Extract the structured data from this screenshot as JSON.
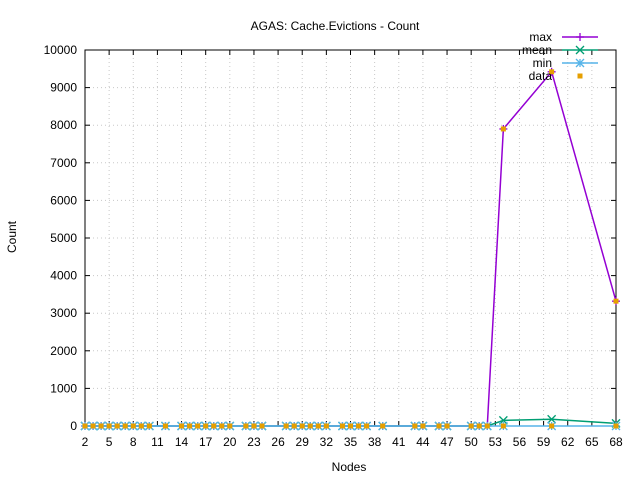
{
  "chart_data": {
    "type": "line",
    "title": "AGAS: Cache.Evictions - Count",
    "xlabel": "Nodes",
    "ylabel": "Count",
    "xlim": [
      2,
      68
    ],
    "ylim": [
      0,
      10000
    ],
    "x_ticks": [
      2,
      5,
      8,
      11,
      14,
      17,
      20,
      23,
      26,
      29,
      32,
      35,
      38,
      41,
      44,
      47,
      50,
      53,
      56,
      59,
      62,
      65,
      68
    ],
    "y_ticks": [
      0,
      1000,
      2000,
      3000,
      4000,
      5000,
      6000,
      7000,
      8000,
      9000,
      10000
    ],
    "grid": true,
    "legend_position": "top-right",
    "series": [
      {
        "name": "max",
        "style": "line+points",
        "color": "#9400d3",
        "marker": "plus",
        "x": [
          2,
          3,
          4,
          5,
          6,
          7,
          8,
          9,
          10,
          12,
          14,
          15,
          16,
          17,
          18,
          19,
          20,
          22,
          23,
          24,
          27,
          28,
          29,
          30,
          31,
          32,
          34,
          35,
          36,
          37,
          39,
          43,
          44,
          46,
          47,
          50,
          51,
          52,
          54,
          60,
          68
        ],
        "values": [
          0,
          0,
          0,
          0,
          0,
          0,
          0,
          0,
          0,
          0,
          0,
          0,
          0,
          0,
          0,
          0,
          0,
          0,
          0,
          0,
          0,
          0,
          0,
          0,
          0,
          0,
          0,
          0,
          0,
          0,
          0,
          0,
          0,
          0,
          0,
          0,
          0,
          0,
          7900,
          9420,
          3320
        ]
      },
      {
        "name": "mean",
        "style": "line+points",
        "color": "#009e73",
        "marker": "cross",
        "x": [
          2,
          3,
          4,
          5,
          6,
          7,
          8,
          9,
          10,
          12,
          14,
          15,
          16,
          17,
          18,
          19,
          20,
          22,
          23,
          24,
          27,
          28,
          29,
          30,
          31,
          32,
          34,
          35,
          36,
          37,
          39,
          43,
          44,
          46,
          47,
          50,
          51,
          52,
          54,
          60,
          68
        ],
        "values": [
          0,
          0,
          0,
          0,
          0,
          0,
          0,
          0,
          0,
          0,
          0,
          0,
          0,
          0,
          0,
          0,
          0,
          0,
          0,
          0,
          0,
          0,
          0,
          0,
          0,
          0,
          0,
          0,
          0,
          0,
          0,
          0,
          0,
          0,
          0,
          0,
          0,
          0,
          150,
          180,
          70
        ]
      },
      {
        "name": "min",
        "style": "line+points",
        "color": "#56b4e9",
        "marker": "star",
        "x": [
          2,
          3,
          4,
          5,
          6,
          7,
          8,
          9,
          10,
          12,
          14,
          15,
          16,
          17,
          18,
          19,
          20,
          22,
          23,
          24,
          27,
          28,
          29,
          30,
          31,
          32,
          34,
          35,
          36,
          37,
          39,
          43,
          44,
          46,
          47,
          50,
          51,
          52,
          54,
          60,
          68
        ],
        "values": [
          0,
          0,
          0,
          0,
          0,
          0,
          0,
          0,
          0,
          0,
          0,
          0,
          0,
          0,
          0,
          0,
          0,
          0,
          0,
          0,
          0,
          0,
          0,
          0,
          0,
          0,
          0,
          0,
          0,
          0,
          0,
          0,
          0,
          0,
          0,
          0,
          0,
          0,
          0,
          0,
          0
        ]
      },
      {
        "name": "data",
        "style": "points",
        "color": "#e69f00",
        "marker": "square",
        "x": [
          2,
          3,
          4,
          5,
          6,
          7,
          8,
          9,
          10,
          12,
          14,
          15,
          16,
          17,
          18,
          19,
          20,
          22,
          23,
          24,
          27,
          28,
          29,
          30,
          31,
          32,
          34,
          35,
          36,
          37,
          39,
          43,
          44,
          46,
          47,
          50,
          51,
          52,
          54,
          54,
          60,
          60,
          68,
          68
        ],
        "values": [
          0,
          0,
          0,
          0,
          0,
          0,
          0,
          0,
          0,
          0,
          0,
          0,
          0,
          0,
          0,
          0,
          0,
          0,
          0,
          0,
          0,
          0,
          0,
          0,
          0,
          0,
          0,
          0,
          0,
          0,
          0,
          0,
          0,
          0,
          0,
          0,
          0,
          0,
          7900,
          0,
          9420,
          0,
          3320,
          0
        ]
      }
    ]
  }
}
